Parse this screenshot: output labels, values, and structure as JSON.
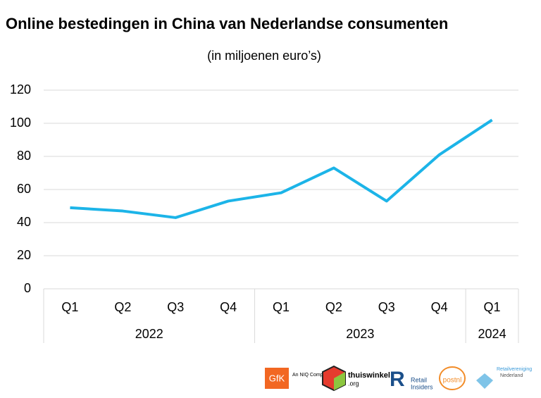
{
  "chart_data": {
    "type": "line",
    "title": "Online bestedingen in China van Nederlandse consumenten",
    "subtitle": "(in miljoenen euro’s)",
    "groups": [
      {
        "name": "2022",
        "categories": [
          "Q1",
          "Q2",
          "Q3",
          "Q4"
        ]
      },
      {
        "name": "2023",
        "categories": [
          "Q1",
          "Q2",
          "Q3",
          "Q4"
        ]
      },
      {
        "name": "2024",
        "categories": [
          "Q1"
        ]
      }
    ],
    "values": [
      49,
      47,
      43,
      53,
      58,
      73,
      53,
      81,
      102
    ],
    "color": "#1cb4e8",
    "ylim": [
      0,
      120
    ],
    "yticks": [
      0,
      20,
      40,
      60,
      80,
      100,
      120
    ],
    "grid": true
  },
  "logos": {
    "gfk": "GfK",
    "gfk_tagline": "An NIQ Company",
    "thuiswinkel": "thuiswinkel",
    "thuiswinkel_suffix": ".org",
    "retail": "Retail",
    "insiders": "Insiders",
    "postnl": "postnl",
    "retailvereniging": "Retailvereniging",
    "nederland": "Nederland"
  }
}
